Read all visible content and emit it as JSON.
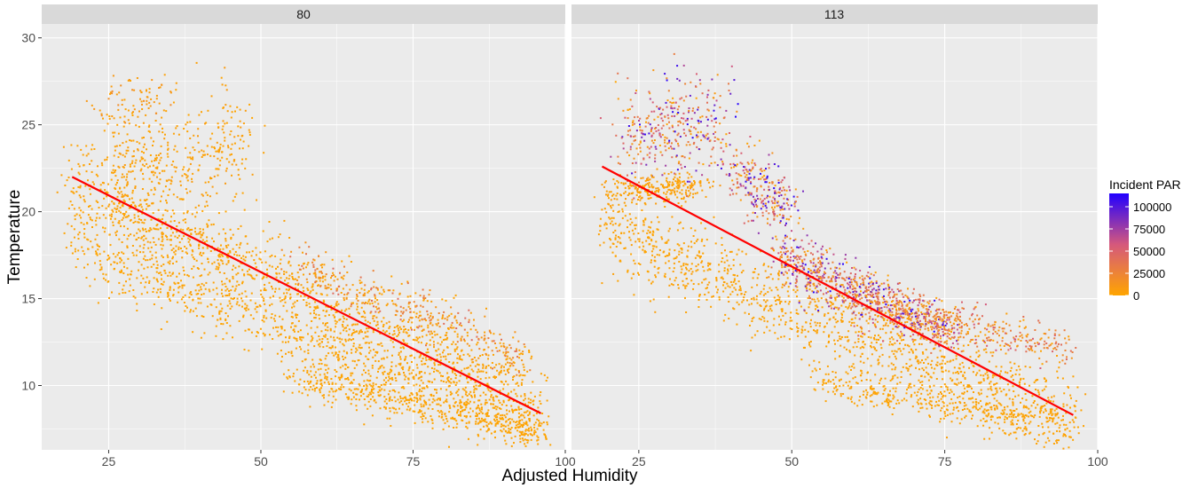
{
  "chart_data": {
    "type": "scatter",
    "xlabel": "Adjusted Humidity",
    "ylabel": "Temperature",
    "xlim": [
      14,
      100
    ],
    "ylim": [
      6.3,
      30.8
    ],
    "x_ticks": [
      25,
      50,
      75,
      100
    ],
    "y_ticks": [
      10,
      15,
      20,
      25,
      30
    ],
    "grid": true,
    "legend_position": "right",
    "legend": {
      "title": "Incident PAR",
      "type": "colorbar",
      "range": [
        0,
        115000
      ],
      "labels": [
        "100000",
        "75000",
        "50000",
        "25000",
        "0"
      ],
      "values": [
        100000,
        75000,
        50000,
        25000,
        0
      ],
      "low_color": "#FFA500",
      "high_color": "#2200FF"
    },
    "panels": [
      {
        "strip": "80",
        "trend_line": {
          "color": "#FF0000",
          "x": [
            19,
            96
          ],
          "y": [
            22.0,
            8.4
          ]
        },
        "clusters": [
          {
            "x": [
              19,
              96
            ],
            "y": [
              21.2,
              9.0
            ],
            "spread": 2.6,
            "count": 1500,
            "par_max": 4000
          },
          {
            "x": [
              20,
              96
            ],
            "y": [
              17.6,
              7.6
            ],
            "spread": 1.5,
            "count": 700,
            "par_max": 3000
          },
          {
            "x": [
              55,
              96
            ],
            "y": [
              10.5,
              7.3
            ],
            "spread": 1.0,
            "count": 500,
            "par_max": 3000
          },
          {
            "x": [
              24,
              48
            ],
            "y": [
              22.5,
              23.8
            ],
            "spread": 3.0,
            "count": 400,
            "par_max": 8000
          },
          {
            "x": [
              24,
              36
            ],
            "y": [
              26.0,
              27.0
            ],
            "spread": 1.3,
            "count": 80,
            "par_max": 20000
          },
          {
            "x": [
              56,
              93
            ],
            "y": [
              17.0,
              11.5
            ],
            "spread": 1.2,
            "count": 300,
            "par_max": 45000
          }
        ]
      },
      {
        "strip": "113",
        "trend_line": {
          "color": "#FF0000",
          "x": [
            19,
            96
          ],
          "y": [
            22.6,
            8.3
          ]
        },
        "clusters": [
          {
            "x": [
              19,
              96
            ],
            "y": [
              19.0,
              8.0
            ],
            "spread": 2.2,
            "count": 1300,
            "par_max": 5000
          },
          {
            "x": [
              22,
              40
            ],
            "y": [
              24.0,
              25.5
            ],
            "spread": 2.8,
            "count": 380,
            "par_max": 115000
          },
          {
            "x": [
              40,
              50
            ],
            "y": [
              22.5,
              20.0
            ],
            "spread": 1.8,
            "count": 260,
            "par_max": 115000
          },
          {
            "x": [
              48,
              76
            ],
            "y": [
              17.5,
              13.0
            ],
            "spread": 1.3,
            "count": 750,
            "par_max": 115000
          },
          {
            "x": [
              60,
              95
            ],
            "y": [
              14.8,
              12.2
            ],
            "spread": 1.1,
            "count": 400,
            "par_max": 60000
          },
          {
            "x": [
              20,
              36
            ],
            "y": [
              21.0,
              21.6
            ],
            "spread": 0.8,
            "count": 250,
            "par_max": 8000
          },
          {
            "x": [
              55,
              96
            ],
            "y": [
              10.2,
              7.6
            ],
            "spread": 0.9,
            "count": 400,
            "par_max": 4000
          }
        ]
      }
    ]
  }
}
